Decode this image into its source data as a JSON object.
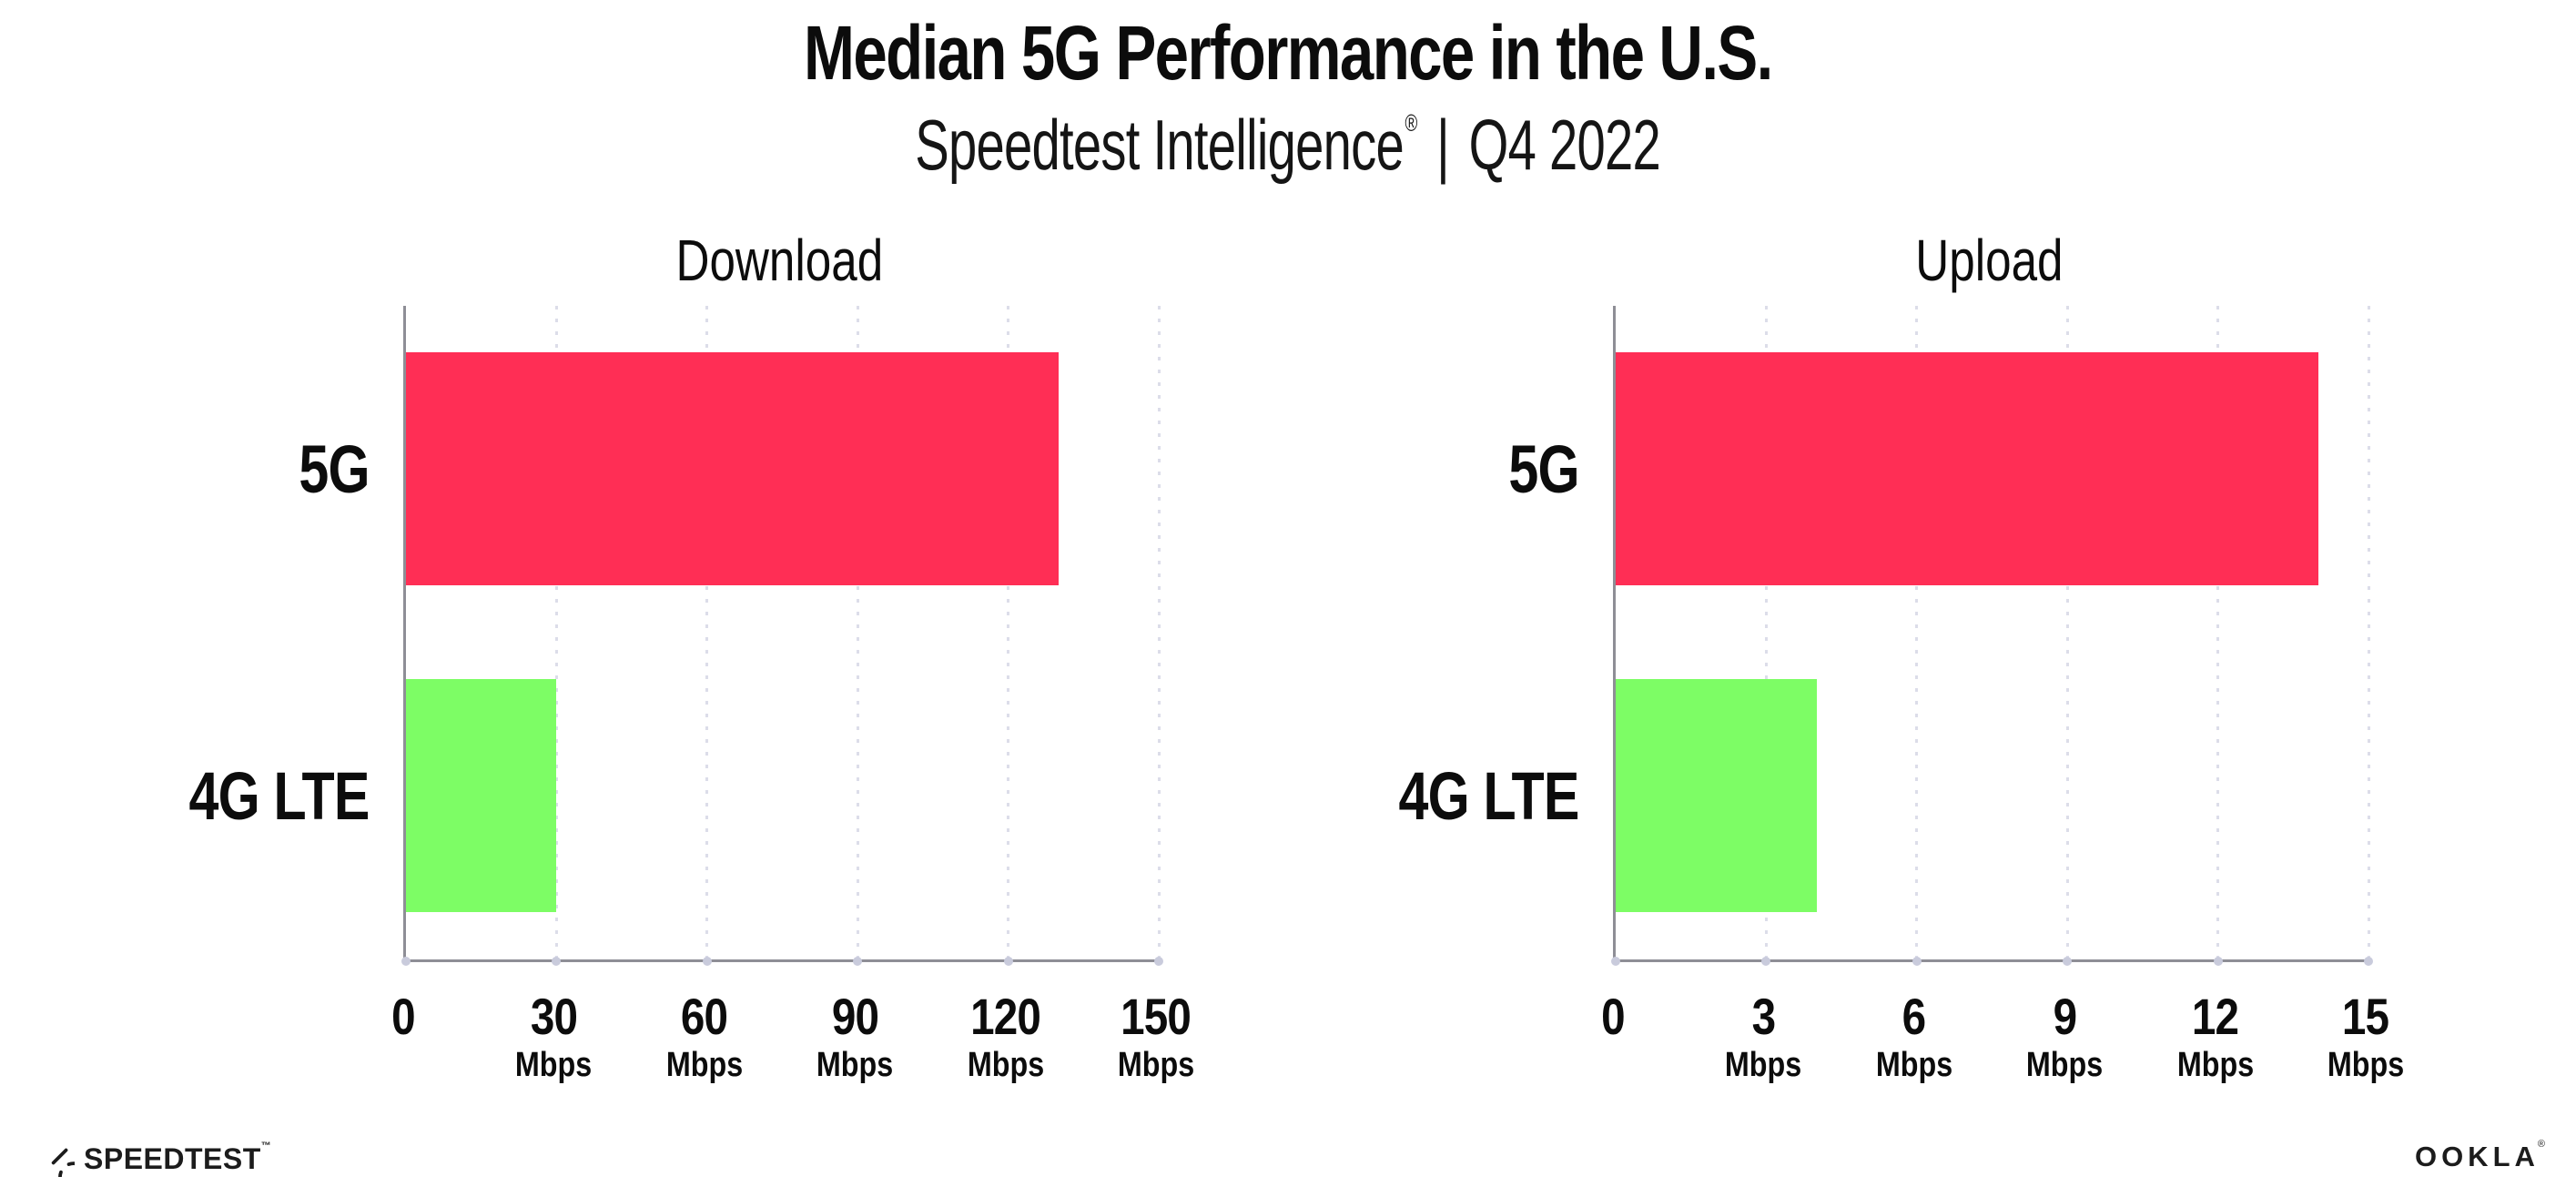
{
  "header": {
    "title": "Median 5G Performance in the U.S.",
    "subtitle_brand": "Speedtest Intelligence",
    "subtitle_registered_mark": "®",
    "subtitle_separator": "|",
    "subtitle_period": "Q4 2022"
  },
  "chart_data": [
    {
      "type": "bar",
      "orientation": "horizontal",
      "title": "Download",
      "categories": [
        "5G",
        "4G LTE"
      ],
      "values": [
        130,
        30
      ],
      "unit": "Mbps",
      "xlim": [
        0,
        150
      ],
      "xticks": [
        0,
        30,
        60,
        90,
        120,
        150
      ],
      "bar_colors": [
        "#ff2e55",
        "#7dfd65"
      ],
      "grid": "dotted-vertical",
      "legend": "none"
    },
    {
      "type": "bar",
      "orientation": "horizontal",
      "title": "Upload",
      "categories": [
        "5G",
        "4G LTE"
      ],
      "values": [
        14,
        4
      ],
      "unit": "Mbps",
      "xlim": [
        0,
        15
      ],
      "xticks": [
        0,
        3,
        6,
        9,
        12,
        15
      ],
      "bar_colors": [
        "#ff2e55",
        "#7dfd65"
      ],
      "grid": "dotted-vertical",
      "legend": "none"
    }
  ],
  "footer": {
    "speedtest_wordmark": "SPEEDTEST",
    "speedtest_trademark": "™",
    "ookla_wordmark": "OOKLA",
    "ookla_registered_mark": "®"
  },
  "colors": {
    "bar_5g": "#ff2e55",
    "bar_4g_lte": "#7dfd65",
    "axis": "#8e8e96",
    "gridline": "#dcdde9",
    "tick_dot": "#c9cbdc",
    "text": "#0c0c0c"
  }
}
